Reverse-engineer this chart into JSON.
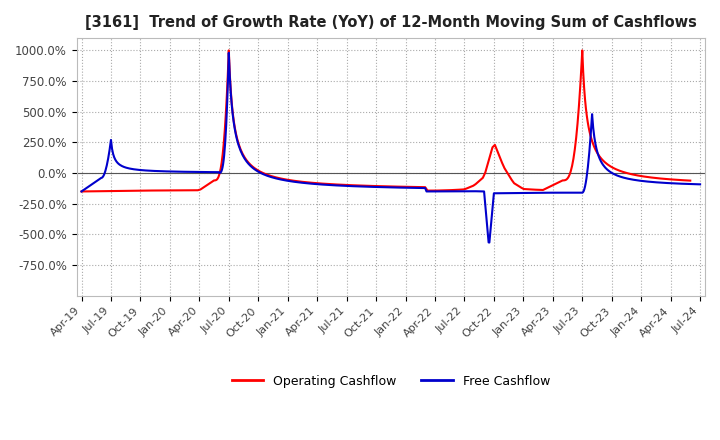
{
  "title": "[3161]  Trend of Growth Rate (YoY) of 12-Month Moving Sum of Cashflows",
  "ylim": [
    -1000,
    1100
  ],
  "yticks": [
    -750,
    -500,
    -250,
    0,
    250,
    500,
    750,
    1000
  ],
  "ytick_labels": [
    "-750.0%",
    "-500.0%",
    "-250.0%",
    "0.0%",
    "250.0%",
    "500.0%",
    "750.0%",
    "1000.0%"
  ],
  "bg_color": "#ffffff",
  "grid_color": "#aaaaaa",
  "operating_color": "#ff0000",
  "free_color": "#0000cc",
  "x_tick_positions": [
    0,
    3,
    6,
    9,
    12,
    15,
    18,
    21,
    24,
    27,
    30,
    33,
    36,
    39,
    42,
    45,
    48,
    51,
    54,
    57,
    60,
    63
  ],
  "x_tick_labels": [
    "Apr-19",
    "Jul-19",
    "Oct-19",
    "Jan-20",
    "Apr-20",
    "Jul-20",
    "Oct-20",
    "Jan-21",
    "Apr-21",
    "Jul-21",
    "Oct-21",
    "Jan-22",
    "Apr-22",
    "Jul-22",
    "Oct-22",
    "Jan-23",
    "Apr-23",
    "Jul-23",
    "Oct-23",
    "Jan-24",
    "Apr-24",
    "Jul-24"
  ],
  "operating_pts": [
    [
      0,
      -150
    ],
    [
      3,
      -130
    ],
    [
      6,
      -145
    ],
    [
      9,
      -145
    ],
    [
      12,
      -140
    ],
    [
      13,
      -120
    ],
    [
      14,
      -50
    ],
    [
      15,
      1000
    ],
    [
      16,
      750
    ],
    [
      17,
      480
    ],
    [
      18,
      300
    ],
    [
      19,
      190
    ],
    [
      20,
      130
    ],
    [
      21,
      100
    ],
    [
      22,
      80
    ],
    [
      23,
      60
    ],
    [
      24,
      45
    ],
    [
      25,
      30
    ],
    [
      26,
      15
    ],
    [
      27,
      5
    ],
    [
      28,
      -15
    ],
    [
      29,
      -35
    ],
    [
      30,
      -65
    ],
    [
      31,
      -100
    ],
    [
      32,
      -125
    ],
    [
      33,
      -135
    ],
    [
      34,
      -140
    ],
    [
      35,
      -143
    ],
    [
      36,
      -143
    ],
    [
      37,
      -140
    ],
    [
      38,
      -137
    ],
    [
      39,
      -133
    ],
    [
      40,
      -100
    ],
    [
      41,
      -30
    ],
    [
      42,
      250
    ],
    [
      43,
      50
    ],
    [
      44,
      -80
    ],
    [
      45,
      -130
    ],
    [
      46,
      -135
    ],
    [
      47,
      -138
    ],
    [
      48,
      -120
    ],
    [
      49,
      -60
    ],
    [
      50,
      200
    ],
    [
      51,
      1000
    ],
    [
      52,
      800
    ],
    [
      53,
      450
    ],
    [
      54,
      150
    ],
    [
      55,
      30
    ],
    [
      56,
      -10
    ],
    [
      57,
      -50
    ],
    [
      58,
      -80
    ],
    [
      59,
      -100
    ],
    [
      60,
      -105
    ],
    [
      61,
      -108
    ],
    [
      62,
      -110
    ]
  ],
  "free_pts": [
    [
      0,
      -150
    ],
    [
      1,
      -120
    ],
    [
      2,
      -40
    ],
    [
      3,
      270
    ],
    [
      4,
      230
    ],
    [
      5,
      190
    ],
    [
      6,
      155
    ],
    [
      7,
      120
    ],
    [
      8,
      90
    ],
    [
      9,
      65
    ],
    [
      10,
      45
    ],
    [
      11,
      25
    ],
    [
      12,
      10
    ],
    [
      13,
      0
    ],
    [
      14,
      -10
    ],
    [
      15,
      980
    ],
    [
      16,
      740
    ],
    [
      17,
      470
    ],
    [
      18,
      290
    ],
    [
      19,
      180
    ],
    [
      20,
      120
    ],
    [
      21,
      90
    ],
    [
      22,
      70
    ],
    [
      23,
      52
    ],
    [
      24,
      38
    ],
    [
      25,
      22
    ],
    [
      26,
      8
    ],
    [
      27,
      -5
    ],
    [
      28,
      -25
    ],
    [
      29,
      -50
    ],
    [
      30,
      -80
    ],
    [
      31,
      -110
    ],
    [
      32,
      -135
    ],
    [
      33,
      -143
    ],
    [
      34,
      -148
    ],
    [
      35,
      -150
    ],
    [
      36,
      -150
    ],
    [
      37,
      -148
    ],
    [
      38,
      -148
    ],
    [
      39,
      -148
    ],
    [
      40,
      -148
    ],
    [
      41,
      -148
    ],
    [
      42,
      -148
    ],
    [
      43,
      -150
    ],
    [
      44,
      -155
    ],
    [
      45,
      -160
    ],
    [
      46,
      -162
    ],
    [
      47,
      -165
    ],
    [
      48,
      -168
    ],
    [
      49,
      -170
    ],
    [
      50,
      -170
    ],
    [
      51,
      -170
    ],
    [
      52,
      -168
    ],
    [
      53,
      -160
    ],
    [
      54,
      -150
    ],
    [
      55,
      -140
    ],
    [
      56,
      -135
    ],
    [
      57,
      -130
    ],
    [
      58,
      -125
    ],
    [
      59,
      -120
    ],
    [
      60,
      -115
    ],
    [
      61,
      -112
    ],
    [
      62,
      -110
    ],
    [
      63,
      -108
    ]
  ],
  "free_spike_pts": [
    [
      39,
      -148
    ],
    [
      40,
      -145
    ],
    [
      41,
      -143
    ],
    [
      42,
      -148
    ],
    [
      42,
      -148
    ],
    [
      43,
      -160
    ],
    [
      44,
      -175
    ],
    [
      45,
      -600
    ],
    [
      46,
      -165
    ],
    [
      47,
      -155
    ]
  ],
  "free_spike2_pts": [
    [
      51,
      -170
    ],
    [
      52,
      480
    ],
    [
      53,
      320
    ],
    [
      54,
      150
    ],
    [
      55,
      30
    ],
    [
      56,
      -40
    ],
    [
      57,
      -80
    ],
    [
      58,
      -95
    ],
    [
      59,
      -108
    ],
    [
      60,
      -115
    ],
    [
      61,
      -118
    ],
    [
      62,
      -118
    ],
    [
      63,
      -118
    ]
  ]
}
